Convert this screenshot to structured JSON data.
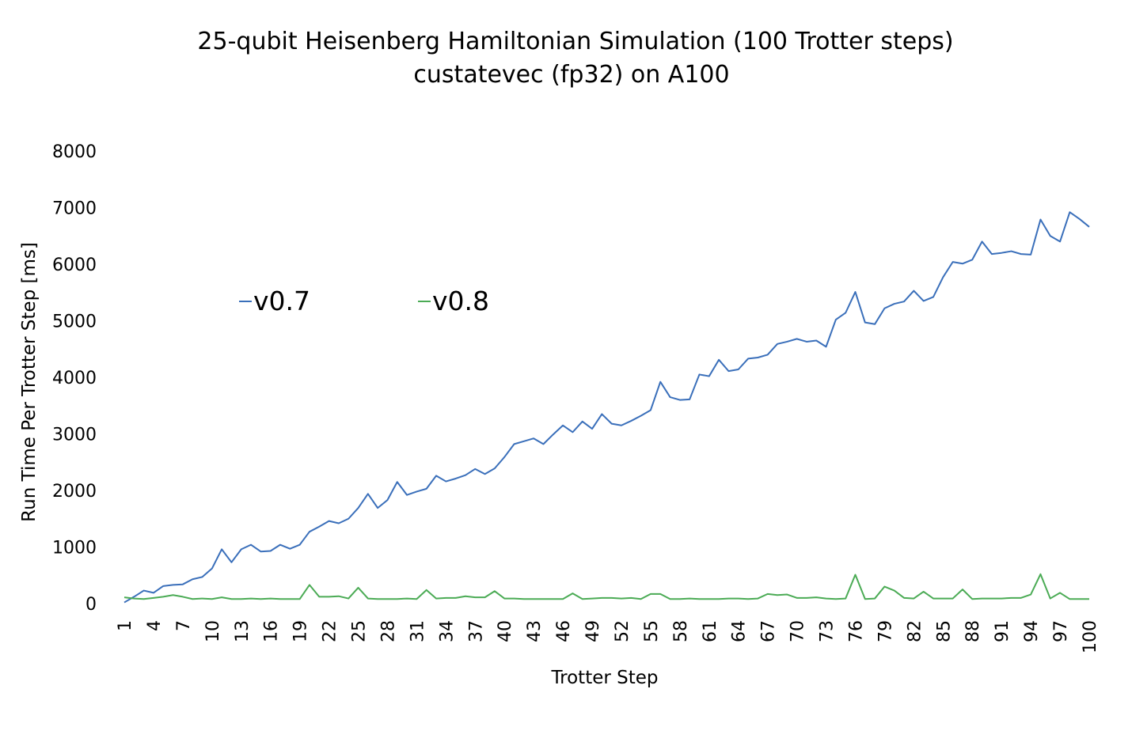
{
  "chart_data": {
    "type": "line",
    "title": "25-qubit Heisenberg Hamiltonian Simulation (100 Trotter steps)",
    "subtitle": "custatevec (fp32) on A100",
    "xlabel": "Trotter Step",
    "ylabel": "Run Time Per Trotter Step [ms]",
    "ylim": [
      0,
      8000
    ],
    "yticks": [
      "0",
      "1000",
      "2000",
      "3000",
      "4000",
      "5000",
      "6000",
      "7000",
      "8000"
    ],
    "xticks": [
      "1",
      "4",
      "7",
      "10",
      "13",
      "16",
      "19",
      "22",
      "25",
      "28",
      "31",
      "34",
      "37",
      "40",
      "43",
      "46",
      "49",
      "52",
      "55",
      "58",
      "61",
      "64",
      "67",
      "70",
      "73",
      "76",
      "79",
      "82",
      "85",
      "88",
      "91",
      "94",
      "97",
      "100"
    ],
    "grid": false,
    "legend": "top-left",
    "x": [
      1,
      2,
      3,
      4,
      5,
      6,
      7,
      8,
      9,
      10,
      11,
      12,
      13,
      14,
      15,
      16,
      17,
      18,
      19,
      20,
      21,
      22,
      23,
      24,
      25,
      26,
      27,
      28,
      29,
      30,
      31,
      32,
      33,
      34,
      35,
      36,
      37,
      38,
      39,
      40,
      41,
      42,
      43,
      44,
      45,
      46,
      47,
      48,
      49,
      50,
      51,
      52,
      53,
      54,
      55,
      56,
      57,
      58,
      59,
      60,
      61,
      62,
      63,
      64,
      65,
      66,
      67,
      68,
      69,
      70,
      71,
      72,
      73,
      74,
      75,
      76,
      77,
      78,
      79,
      80,
      81,
      82,
      83,
      84,
      85,
      86,
      87,
      88,
      89,
      90,
      91,
      92,
      93,
      94,
      95,
      96,
      97,
      98,
      99,
      100
    ],
    "series": [
      {
        "name": "v0.7",
        "color": "#3a6fba",
        "values": [
          20,
          120,
          230,
          190,
          310,
          330,
          340,
          430,
          470,
          620,
          960,
          730,
          960,
          1040,
          920,
          930,
          1040,
          970,
          1040,
          1270,
          1360,
          1460,
          1420,
          1500,
          1690,
          1940,
          1690,
          1830,
          2150,
          1920,
          1980,
          2030,
          2260,
          2160,
          2210,
          2270,
          2380,
          2290,
          2390,
          2590,
          2820,
          2870,
          2920,
          2820,
          2990,
          3150,
          3030,
          3220,
          3090,
          3350,
          3180,
          3150,
          3230,
          3320,
          3420,
          3920,
          3650,
          3600,
          3610,
          4050,
          4020,
          4310,
          4110,
          4140,
          4330,
          4350,
          4400,
          4590,
          4630,
          4680,
          4630,
          4650,
          4540,
          5020,
          5140,
          5510,
          4970,
          4940,
          5220,
          5300,
          5340,
          5530,
          5350,
          5420,
          5770,
          6040,
          6010,
          6080,
          6400,
          6180,
          6200,
          6230,
          6180,
          6170,
          6790,
          6500,
          6400,
          6920,
          6800,
          6660
        ]
      },
      {
        "name": "v0.8",
        "color": "#4bab55",
        "values": [
          110,
          90,
          80,
          100,
          120,
          150,
          120,
          80,
          90,
          80,
          110,
          80,
          80,
          90,
          80,
          90,
          80,
          80,
          80,
          330,
          120,
          120,
          130,
          90,
          280,
          90,
          80,
          80,
          80,
          90,
          80,
          240,
          90,
          100,
          100,
          130,
          110,
          110,
          220,
          90,
          90,
          80,
          80,
          80,
          80,
          80,
          180,
          80,
          90,
          100,
          100,
          90,
          100,
          80,
          170,
          170,
          80,
          80,
          90,
          80,
          80,
          80,
          90,
          90,
          80,
          90,
          170,
          150,
          160,
          100,
          100,
          110,
          90,
          80,
          90,
          510,
          80,
          90,
          300,
          230,
          100,
          90,
          210,
          90,
          90,
          90,
          250,
          80,
          90,
          90,
          90,
          100,
          100,
          160,
          520,
          90,
          190,
          80,
          80,
          80
        ]
      }
    ]
  }
}
